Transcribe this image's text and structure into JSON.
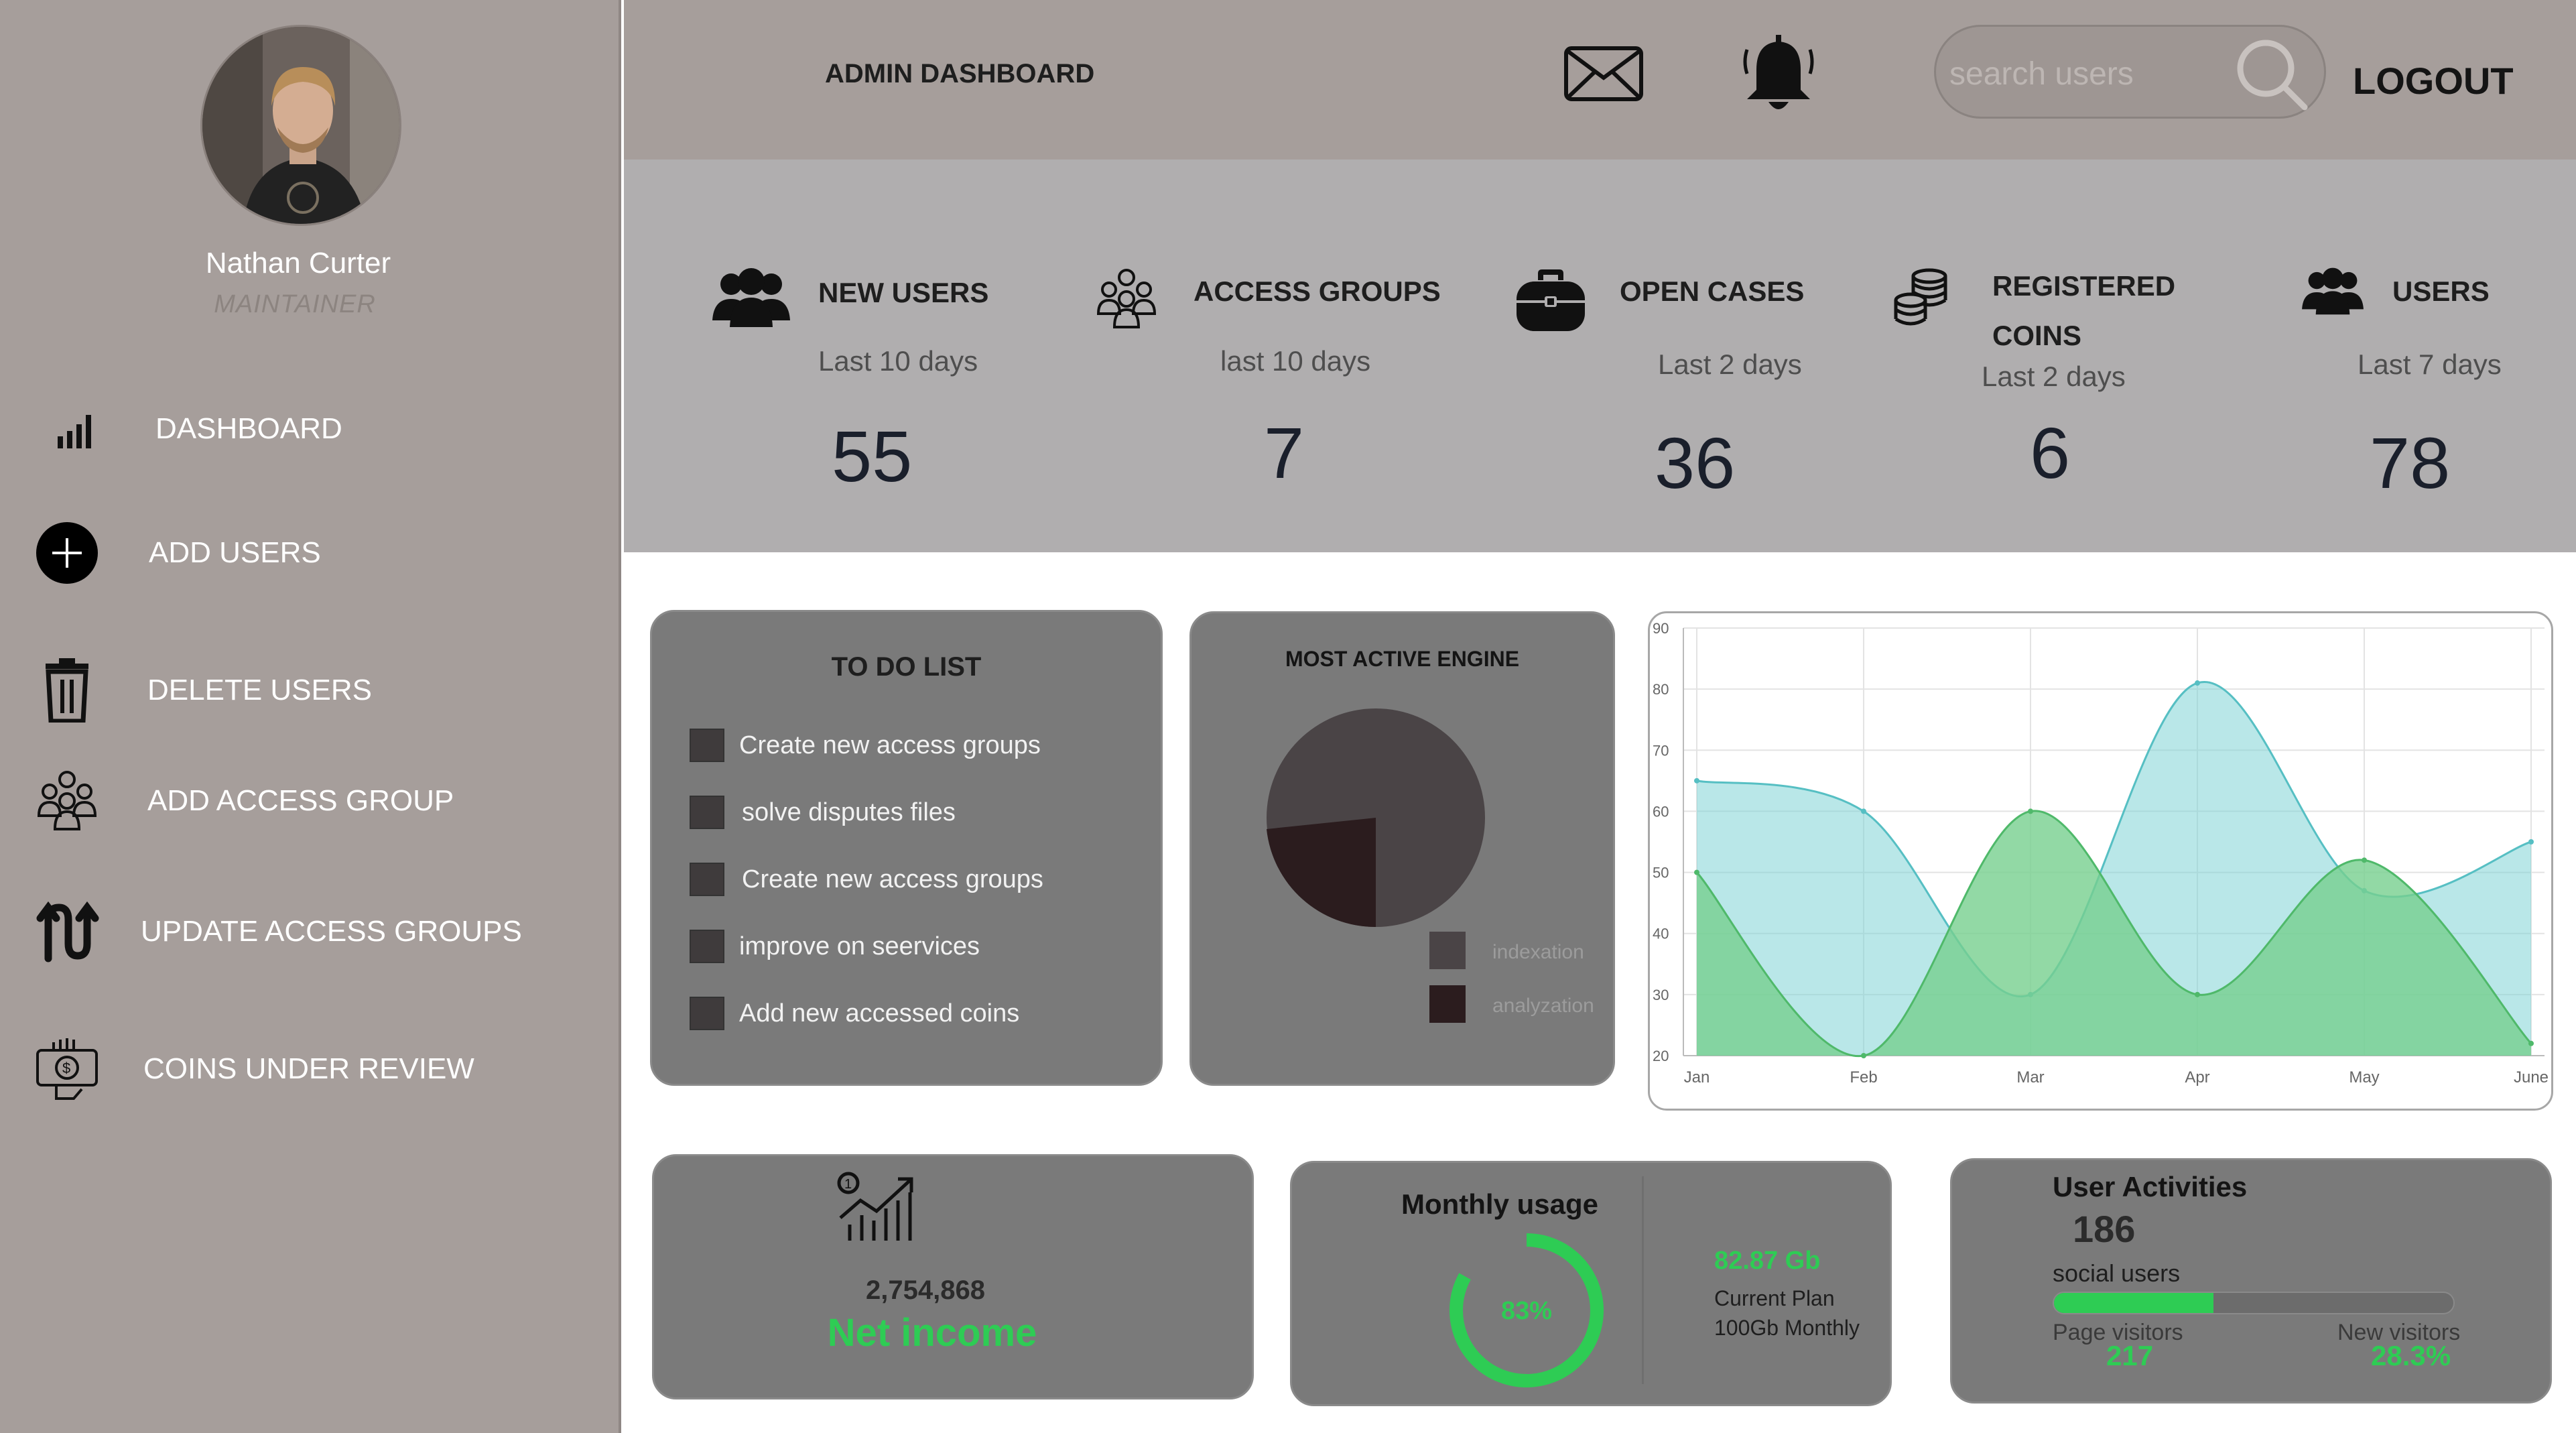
{
  "user": {
    "name": "Nathan Curter",
    "role": "MAINTAINER"
  },
  "sidebar": {
    "items": [
      {
        "label": "DASHBOARD",
        "icon": "bar-chart-icon"
      },
      {
        "label": "ADD USERS",
        "icon": "plus-circle-icon"
      },
      {
        "label": "DELETE USERS",
        "icon": "trash-icon"
      },
      {
        "label": "ADD ACCESS GROUP",
        "icon": "group-icon"
      },
      {
        "label": "UPDATE ACCESS GROUPS",
        "icon": "update-arrows-icon"
      },
      {
        "label": "COINS UNDER REVIEW",
        "icon": "coin-review-icon"
      }
    ]
  },
  "header": {
    "title": "ADMIN DASHBOARD",
    "search_placeholder": "search users",
    "logout_label": "LOGOUT"
  },
  "stats": [
    {
      "title": "NEW USERS",
      "subtitle": "Last 10 days",
      "value": "55",
      "icon": "users-icon"
    },
    {
      "title": "ACCESS GROUPS",
      "subtitle": "last 10 days",
      "value": "7",
      "icon": "group-icon"
    },
    {
      "title": "OPEN CASES",
      "subtitle": "Last 2 days",
      "value": "36",
      "icon": "briefcase-icon"
    },
    {
      "title": "REGISTERED",
      "title2": "COINS",
      "subtitle": "Last 2 days",
      "value": "6",
      "icon": "coins-icon"
    },
    {
      "title": "USERS",
      "subtitle": "Last 7 days",
      "value": "78",
      "icon": "users-icon"
    }
  ],
  "todo": {
    "title": "TO DO LIST",
    "items": [
      "Create new access groups",
      "solve disputes files",
      "Create new access groups",
      "improve on seervices",
      "Add new accessed coins"
    ]
  },
  "engine": {
    "title": "MOST ACTIVE ENGINE",
    "legend": [
      {
        "label": "indexation",
        "color": "#4a4446"
      },
      {
        "label": "analyzation",
        "color": "#2b1c1e"
      }
    ]
  },
  "chart_data": {
    "type": "area",
    "categories": [
      "Jan",
      "Feb",
      "Mar",
      "Apr",
      "May",
      "June"
    ],
    "x": [
      "Jan",
      "Feb",
      "Mar",
      "Apr",
      "May",
      "June"
    ],
    "series": [
      {
        "color": "#7fd3d6",
        "values": [
          65,
          60,
          30,
          81,
          47,
          55
        ]
      },
      {
        "color": "#77d08e",
        "values": [
          50,
          20,
          60,
          30,
          52,
          22
        ]
      }
    ],
    "y_ticks": [
      "20",
      "30",
      "40",
      "50",
      "60",
      "70",
      "80",
      "90"
    ],
    "ylim": [
      20,
      90
    ],
    "grid": true
  },
  "income": {
    "value": "2,754,868",
    "label": "Net income"
  },
  "usage": {
    "title": "Monthly usage",
    "percent": "83%",
    "percent_value": 0.83,
    "gb": "82.87 Gb",
    "plan_line1": "Current Plan",
    "plan_line2": "100Gb Monthly"
  },
  "activities": {
    "title": "User Activities",
    "count": "186",
    "subtitle": "social users",
    "progress": 0.4,
    "page_visitors_label": "Page visitors",
    "page_visitors_value": "217",
    "new_visitors_label": "New visitors",
    "new_visitors_value": "28.3%"
  },
  "colors": {
    "accent_green": "#2ecc54",
    "sidebar_bg": "#a69e9b",
    "card_bg": "#7a7a7a"
  }
}
